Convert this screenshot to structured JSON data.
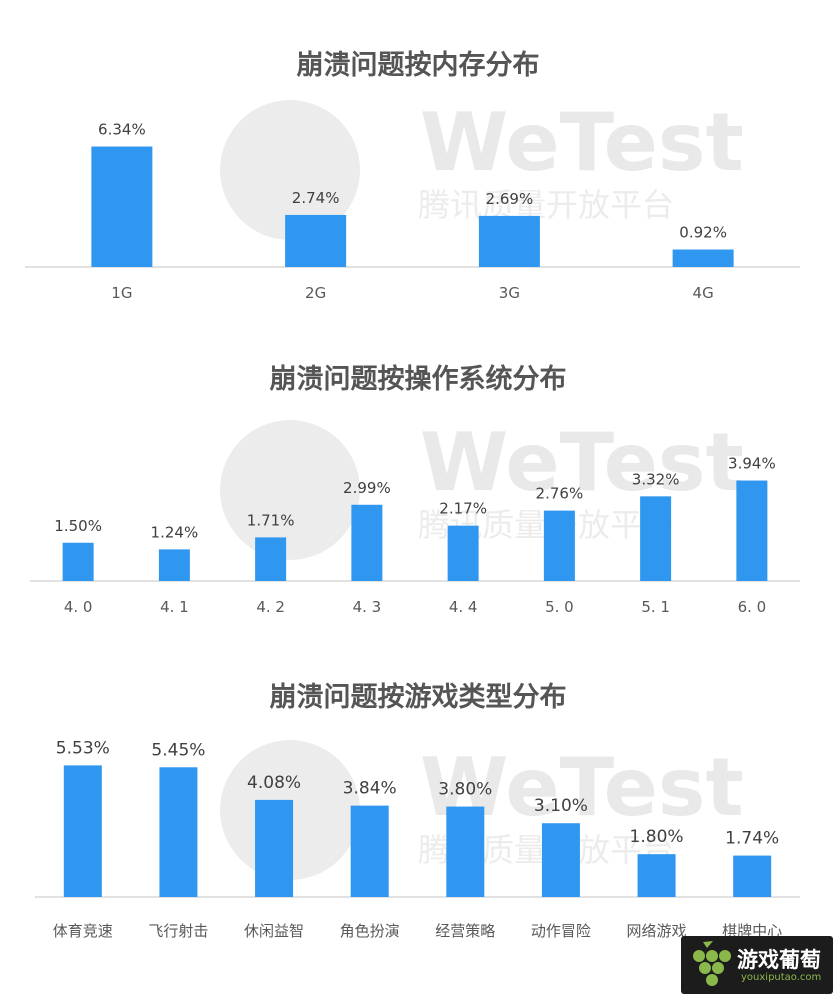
{
  "watermark": {
    "brand": "WeTest",
    "subtitle": "腾讯质量开放平台"
  },
  "logo": {
    "name": "游戏葡萄",
    "domain": "youxiputao.com"
  },
  "colors": {
    "bar": "#2f97ef",
    "axis": "#d9d9d9",
    "title": "#555555",
    "label": "#404040"
  },
  "chart_data": [
    {
      "type": "bar",
      "title": "崩溃问题按内存分布",
      "categories": [
        "1G",
        "2G",
        "3G",
        "4G"
      ],
      "values": [
        6.34,
        2.74,
        2.69,
        0.92
      ],
      "labels": [
        "6.34%",
        "2.74%",
        "2.69%",
        "0.92%"
      ],
      "unit": "%",
      "xlabel": "",
      "ylabel": "",
      "grid": false
    },
    {
      "type": "bar",
      "title": "崩溃问题按操作系统分布",
      "categories": [
        "4. 0",
        "4. 1",
        "4. 2",
        "4. 3",
        "4. 4",
        "5. 0",
        "5. 1",
        "6. 0"
      ],
      "values": [
        1.5,
        1.24,
        1.71,
        2.99,
        2.17,
        2.76,
        3.32,
        3.94
      ],
      "labels": [
        "1.50%",
        "1.24%",
        "1.71%",
        "2.99%",
        "2.17%",
        "2.76%",
        "3.32%",
        "3.94%"
      ],
      "unit": "%",
      "xlabel": "",
      "ylabel": "",
      "grid": false
    },
    {
      "type": "bar",
      "title": "崩溃问题按游戏类型分布",
      "categories": [
        "体育竞速",
        "飞行射击",
        "休闲益智",
        "角色扮演",
        "经营策略",
        "动作冒险",
        "网络游戏",
        "棋牌中心"
      ],
      "values": [
        5.53,
        5.45,
        4.08,
        3.84,
        3.8,
        3.1,
        1.8,
        1.74
      ],
      "labels": [
        "5.53%",
        "5.45%",
        "4.08%",
        "3.84%",
        "3.80%",
        "3.10%",
        "1.80%",
        "1.74%"
      ],
      "unit": "%",
      "xlabel": "",
      "ylabel": "",
      "grid": false
    }
  ]
}
